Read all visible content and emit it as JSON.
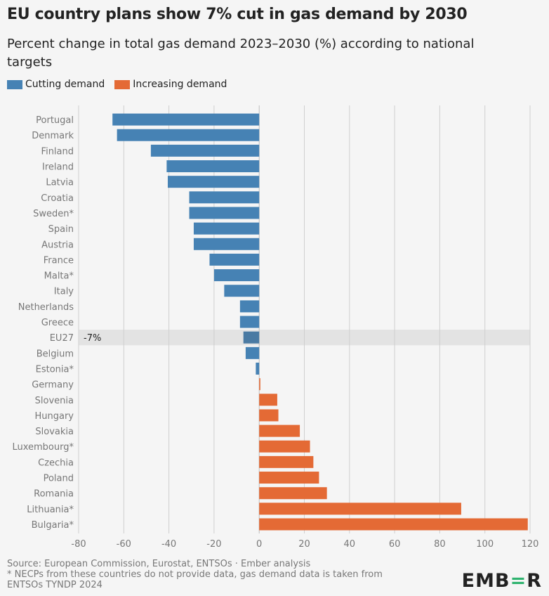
{
  "title": "EU country plans show 7% cut in gas demand by 2030",
  "subtitle": "Percent change in total gas demand 2023–2030 (%) according to national targets",
  "legend": [
    {
      "label": "Cutting demand",
      "color": "#4682b4"
    },
    {
      "label": "Increasing demand",
      "color": "#e46a35"
    }
  ],
  "colors": {
    "cutting": "#4682b4",
    "increasing": "#e46a35",
    "highlight_bar": "#4a7aa3",
    "highlight_band": "#e3e3e3",
    "gridline": "#cfcfcf",
    "axis_text": "#777777"
  },
  "chart_data": {
    "type": "bar",
    "orientation": "horizontal",
    "categories": [
      "Portugal",
      "Denmark",
      "Finland",
      "Ireland",
      "Latvia",
      "Croatia",
      "Sweden*",
      "Spain",
      "Austria",
      "France",
      "Malta*",
      "Italy",
      "Netherlands",
      "Greece",
      "EU27",
      "Belgium",
      "Estonia*",
      "Germany",
      "Slovenia",
      "Hungary",
      "Slovakia",
      "Luxembourg*",
      "Czechia",
      "Poland",
      "Romania",
      "Lithuania*",
      "Bulgaria*"
    ],
    "values": [
      -65,
      -63,
      -48,
      -41,
      -40.5,
      -31,
      -31,
      -29,
      -29,
      -22,
      -20,
      -15.5,
      -8.5,
      -8.5,
      -7,
      -6,
      -1.5,
      0.5,
      8,
      8.5,
      18,
      22.5,
      24,
      26.5,
      30,
      89.5,
      119
    ],
    "highlight": {
      "category": "EU27",
      "label": "-7%"
    },
    "xlim": [
      -80,
      120
    ],
    "xticks": [
      -80,
      -60,
      -40,
      -20,
      0,
      20,
      40,
      60,
      80,
      100,
      120
    ],
    "grid": true
  },
  "footer": {
    "source": "Source: European Commission, Eurostat, ENTSOs · Ember analysis",
    "note_line1": "* NECPs from these countries do not provide data, gas demand data is taken from",
    "note_line2": "ENTSOs TYNDP 2024"
  },
  "logo": {
    "part1": "EMB",
    "part2": "=",
    "part3": "R"
  }
}
